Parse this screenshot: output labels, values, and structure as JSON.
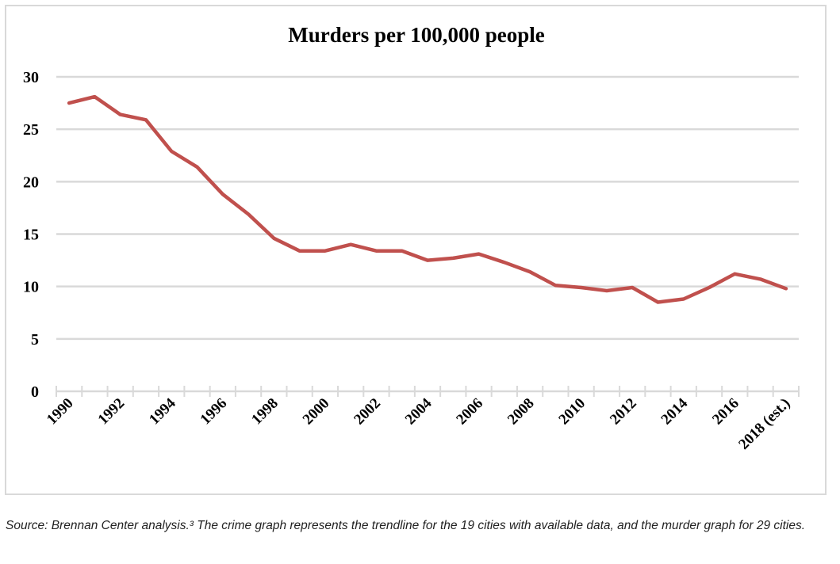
{
  "chart_data": {
    "type": "line",
    "title": "Murders per 100,000 people",
    "xlabel": "",
    "ylabel": "",
    "ylim": [
      0,
      30
    ],
    "yticks": [
      0,
      5,
      10,
      15,
      20,
      25,
      30
    ],
    "grid": true,
    "legend": "none",
    "categories": [
      "1990",
      "1991",
      "1992",
      "1993",
      "1994",
      "1995",
      "1996",
      "1997",
      "1998",
      "1999",
      "2000",
      "2001",
      "2002",
      "2003",
      "2004",
      "2005",
      "2006",
      "2007",
      "2008",
      "2009",
      "2010",
      "2011",
      "2012",
      "2013",
      "2014",
      "2015",
      "2016",
      "2017",
      "2018 (est.)"
    ],
    "xtick_labels": [
      "1990",
      "1992",
      "1994",
      "1996",
      "1998",
      "2000",
      "2002",
      "2004",
      "2006",
      "2008",
      "2010",
      "2012",
      "2014",
      "2016",
      "2018 (est.)"
    ],
    "series": [
      {
        "name": "Murders per 100,000 people",
        "color": "#c0504d",
        "values": [
          27.5,
          28.1,
          26.4,
          25.9,
          22.9,
          21.4,
          18.8,
          16.9,
          14.6,
          13.4,
          13.4,
          14.0,
          13.4,
          13.4,
          12.5,
          12.7,
          13.1,
          12.3,
          11.4,
          10.1,
          9.9,
          9.6,
          9.9,
          8.5,
          8.8,
          9.9,
          11.2,
          10.7,
          9.8
        ]
      }
    ]
  },
  "caption": "Source: Brennan Center analysis.³ The crime graph represents the trendline for the 19 cities with available data, and the murder graph for 29 cities."
}
